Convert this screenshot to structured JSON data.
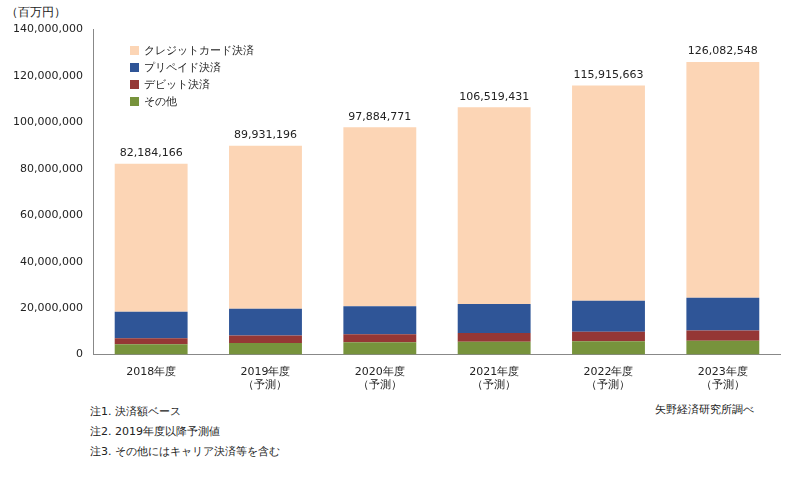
{
  "chart_data": {
    "type": "bar",
    "stacked": true,
    "grid": false,
    "legend": "upper left",
    "y_label": "（百万円）",
    "categories": [
      [
        "2018年度"
      ],
      [
        "2019年度",
        "（予測）"
      ],
      [
        "2020年度",
        "（予測）"
      ],
      [
        "2021年度",
        "（予測）"
      ],
      [
        "2022年度",
        "（予測）"
      ],
      [
        "2023年度",
        "（予測）"
      ]
    ],
    "series": [
      {
        "name": "その他",
        "color": "#77933c",
        "values": [
          4500000,
          5000000,
          5300000,
          5500000,
          5700000,
          6000000
        ]
      },
      {
        "name": "デビット決済",
        "color": "#953735",
        "values": [
          2500000,
          3200000,
          3500000,
          3800000,
          4100000,
          4400000
        ]
      },
      {
        "name": "プリペイド決済",
        "color": "#2f5597",
        "values": [
          11500000,
          11600000,
          12000000,
          12500000,
          13400000,
          14100000
        ]
      },
      {
        "name": "クレジットカード決済",
        "color": "#fcd5b5",
        "values": [
          63684166,
          70131196,
          77084771,
          84719431,
          92715663,
          101582548
        ]
      }
    ],
    "totals": [
      82184166,
      89931196,
      97884771,
      106519431,
      115915663,
      126082548
    ],
    "total_labels": [
      "82,184,166",
      "89,931,196",
      "97,884,771",
      "106,519,431",
      "115,915,663",
      "126,082,548"
    ],
    "ylim": [
      0,
      140000000
    ],
    "yticks": [
      0,
      {
        "value": 20000000,
        "label": "20,000,000"
      },
      {
        "value": 40000000,
        "label": "40,000,000"
      },
      {
        "value": 60000000,
        "label": "60,000,000"
      },
      {
        "value": 80000000,
        "label": "80,000,000"
      },
      {
        "value": 100000000,
        "label": "100,000,000"
      },
      {
        "value": 120000000,
        "label": "120,000,000"
      },
      {
        "value": 140000000,
        "label": "140,000,000"
      }
    ],
    "notes": [
      "注1. 決済額ベース",
      "注2. 2019年度以降予測値",
      "注3. その他にはキャリア決済等を含む"
    ],
    "source": "矢野経済研究所調べ"
  }
}
